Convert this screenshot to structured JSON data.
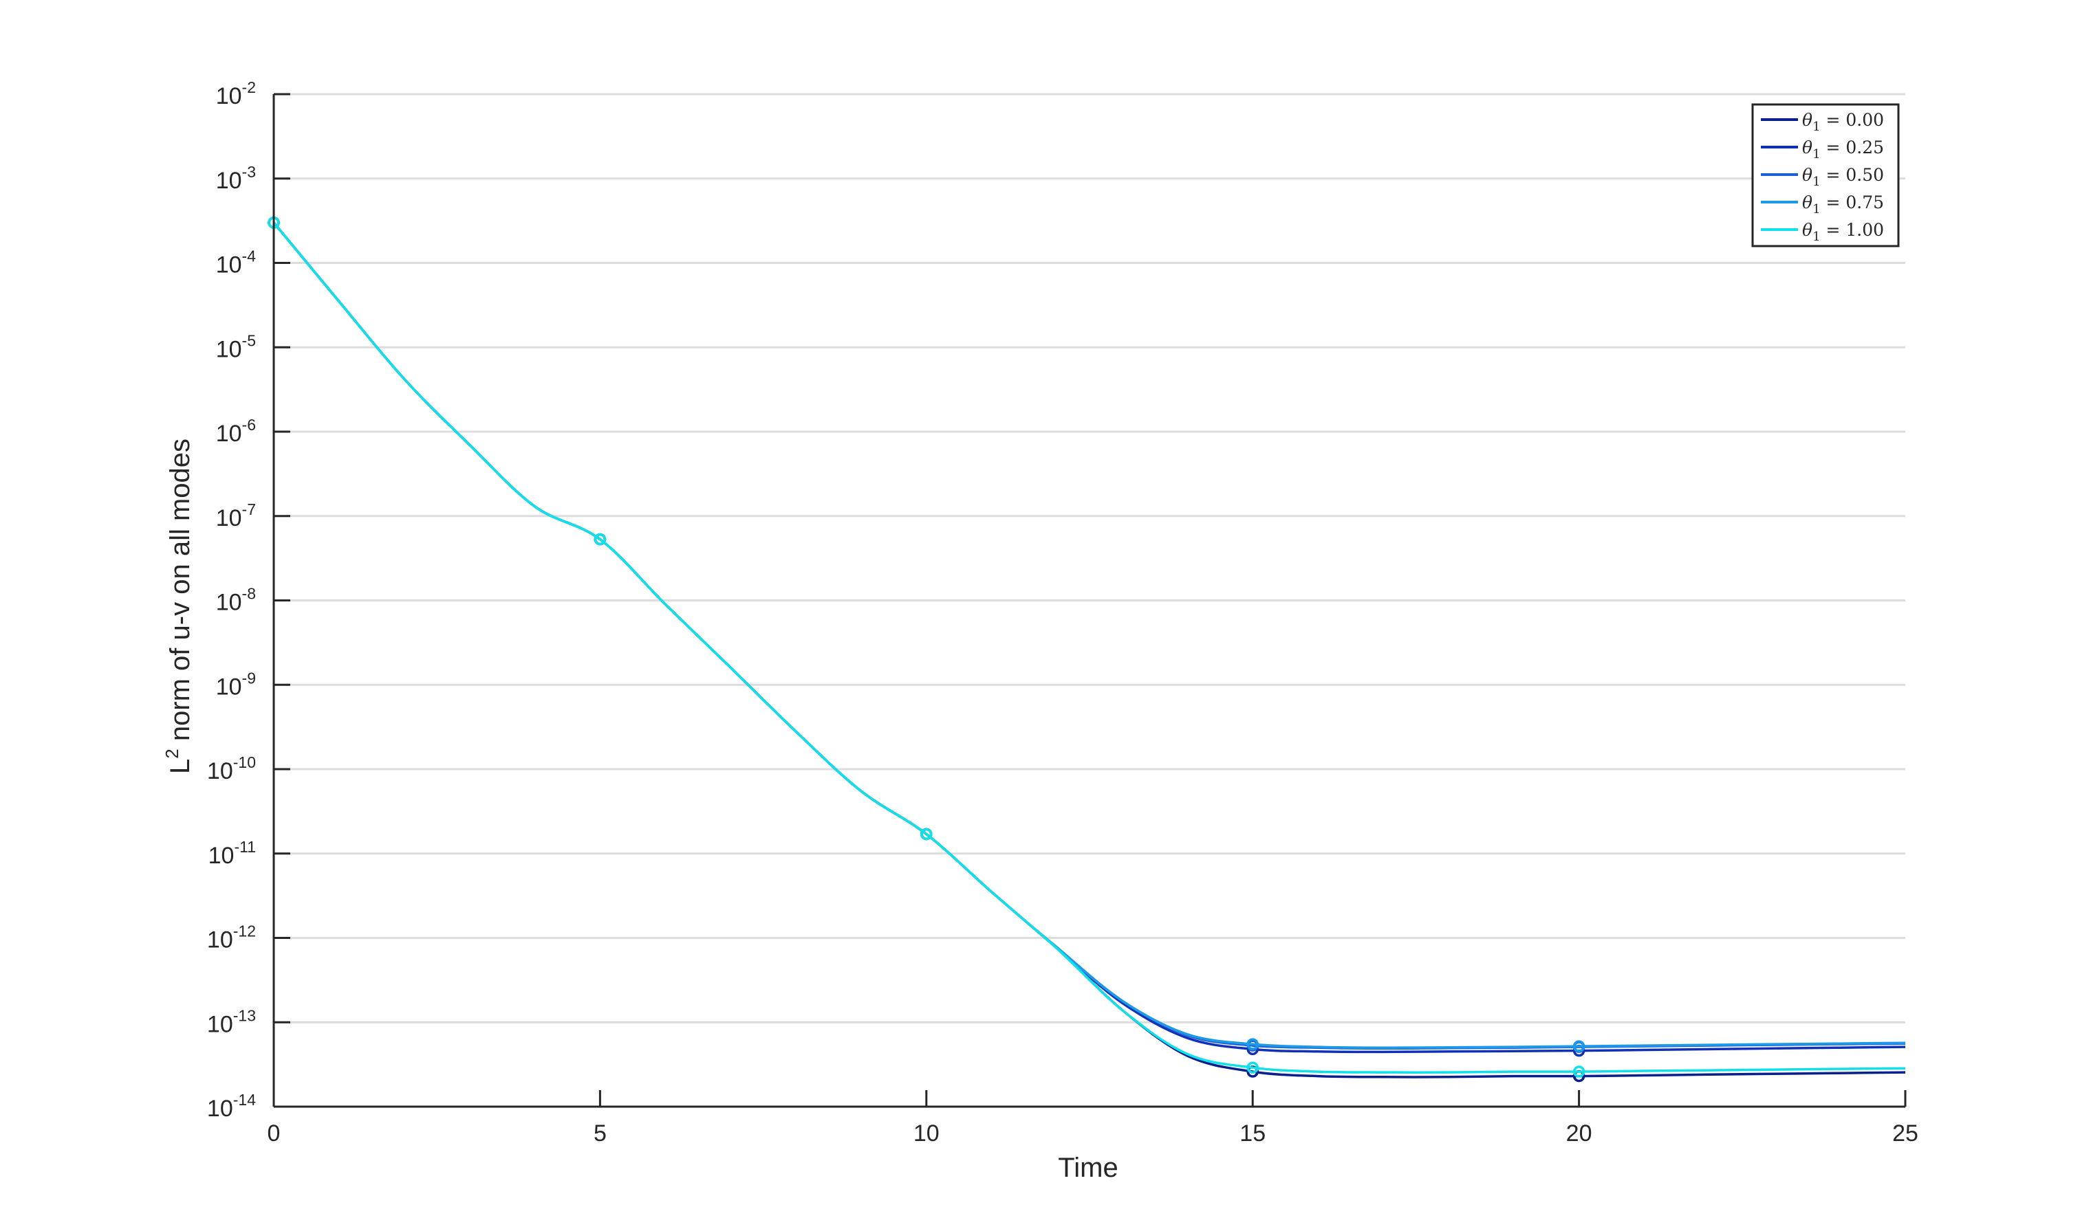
{
  "chart_data": {
    "type": "line",
    "xlabel": "Time",
    "ylabel": {
      "prefix": "L",
      "superscript": "2",
      "rest": " norm of u-v on all modes"
    },
    "xlim": [
      0,
      25
    ],
    "ylim_log10": [
      -14,
      -2
    ],
    "yscale": "log",
    "grid": "horizontal",
    "legend_position": "top-right",
    "x_ticks": [
      "0",
      "5",
      "10",
      "15",
      "20",
      "25"
    ],
    "y_ticks": [
      {
        "base": "10",
        "exp": "-2"
      },
      {
        "base": "10",
        "exp": "-3"
      },
      {
        "base": "10",
        "exp": "-4"
      },
      {
        "base": "10",
        "exp": "-5"
      },
      {
        "base": "10",
        "exp": "-6"
      },
      {
        "base": "10",
        "exp": "-7"
      },
      {
        "base": "10",
        "exp": "-8"
      },
      {
        "base": "10",
        "exp": "-9"
      },
      {
        "base": "10",
        "exp": "-10"
      },
      {
        "base": "10",
        "exp": "-11"
      },
      {
        "base": "10",
        "exp": "-12"
      },
      {
        "base": "10",
        "exp": "-13"
      },
      {
        "base": "10",
        "exp": "-14"
      }
    ],
    "markers_at_x": [
      0,
      5,
      10,
      15,
      20
    ],
    "series": [
      {
        "name": "θ1 = 0.00",
        "legend": {
          "sym": "θ",
          "sub": "1",
          "val": " = 0.00"
        },
        "color": "#0a1f8f",
        "x": [
          0,
          1,
          2,
          3,
          4,
          5,
          6,
          7,
          8,
          9,
          10,
          11,
          12,
          13,
          14,
          15,
          16,
          17,
          18,
          19,
          20,
          21,
          22,
          23,
          24,
          25
        ],
        "y": [
          0.0003,
          3.5e-05,
          4.2e-06,
          7e-07,
          1.3e-07,
          5.3e-08,
          9e-09,
          1.6e-09,
          2.8e-10,
          5.5e-11,
          1.7e-11,
          3.5e-12,
          7.5e-13,
          1.4e-13,
          4e-14,
          2.6e-14,
          2.3e-14,
          2.25e-14,
          2.25e-14,
          2.3e-14,
          2.3e-14,
          2.35e-14,
          2.4e-14,
          2.45e-14,
          2.5e-14,
          2.55e-14
        ]
      },
      {
        "name": "θ1 = 0.25",
        "legend": {
          "sym": "θ",
          "sub": "1",
          "val": " = 0.25"
        },
        "color": "#1030b8",
        "x": [
          0,
          1,
          2,
          3,
          4,
          5,
          6,
          7,
          8,
          9,
          10,
          11,
          12,
          13,
          14,
          15,
          16,
          17,
          18,
          19,
          20,
          21,
          22,
          23,
          24,
          25
        ],
        "y": [
          0.0003,
          3.5e-05,
          4.2e-06,
          7e-07,
          1.3e-07,
          5.3e-08,
          9e-09,
          1.6e-09,
          2.8e-10,
          5.5e-11,
          1.7e-11,
          3.5e-12,
          7.6e-13,
          1.7e-13,
          6.5e-14,
          4.8e-14,
          4.5e-14,
          4.45e-14,
          4.5e-14,
          4.55e-14,
          4.6e-14,
          4.7e-14,
          4.8e-14,
          4.9e-14,
          5e-14,
          5.1e-14
        ]
      },
      {
        "name": "θ1 = 0.50",
        "legend": {
          "sym": "θ",
          "sub": "1",
          "val": " = 0.50"
        },
        "color": "#1f5fd6",
        "x": [
          0,
          1,
          2,
          3,
          4,
          5,
          6,
          7,
          8,
          9,
          10,
          11,
          12,
          13,
          14,
          15,
          16,
          17,
          18,
          19,
          20,
          21,
          22,
          23,
          24,
          25
        ],
        "y": [
          0.0003,
          3.5e-05,
          4.2e-06,
          7e-07,
          1.3e-07,
          5.3e-08,
          9e-09,
          1.6e-09,
          2.8e-10,
          5.5e-11,
          1.7e-11,
          3.5e-12,
          7.7e-13,
          1.8e-13,
          7e-14,
          5.3e-14,
          5e-14,
          4.9e-14,
          4.95e-14,
          5e-14,
          5.1e-14,
          5.2e-14,
          5.3e-14,
          5.4e-14,
          5.5e-14,
          5.6e-14
        ]
      },
      {
        "name": "θ1 = 0.75",
        "legend": {
          "sym": "θ",
          "sub": "1",
          "val": " = 0.75"
        },
        "color": "#1c9ae8",
        "x": [
          0,
          1,
          2,
          3,
          4,
          5,
          6,
          7,
          8,
          9,
          10,
          11,
          12,
          13,
          14,
          15,
          16,
          17,
          18,
          19,
          20,
          21,
          22,
          23,
          24,
          25
        ],
        "y": [
          0.0003,
          3.5e-05,
          4.2e-06,
          7e-07,
          1.3e-07,
          5.3e-08,
          9e-09,
          1.6e-09,
          2.8e-10,
          5.5e-11,
          1.7e-11,
          3.5e-12,
          7.7e-13,
          1.8e-13,
          7.2e-14,
          5.5e-14,
          5.1e-14,
          5e-14,
          5.05e-14,
          5.1e-14,
          5.2e-14,
          5.3e-14,
          5.4e-14,
          5.5e-14,
          5.6e-14,
          5.7e-14
        ]
      },
      {
        "name": "θ1 = 1.00",
        "legend": {
          "sym": "θ",
          "sub": "1",
          "val": " = 1.00"
        },
        "color": "#12e0e8",
        "x": [
          0,
          1,
          2,
          3,
          4,
          5,
          6,
          7,
          8,
          9,
          10,
          11,
          12,
          13,
          14,
          15,
          16,
          17,
          18,
          19,
          20,
          21,
          22,
          23,
          24,
          25
        ],
        "y": [
          0.0003,
          3.5e-05,
          4.2e-06,
          7e-07,
          1.3e-07,
          5.3e-08,
          9e-09,
          1.6e-09,
          2.8e-10,
          5.5e-11,
          1.7e-11,
          3.5e-12,
          7.5e-13,
          1.4e-13,
          4.2e-14,
          2.9e-14,
          2.6e-14,
          2.55e-14,
          2.55e-14,
          2.6e-14,
          2.6e-14,
          2.65e-14,
          2.7e-14,
          2.75e-14,
          2.8e-14,
          2.85e-14
        ]
      }
    ]
  }
}
